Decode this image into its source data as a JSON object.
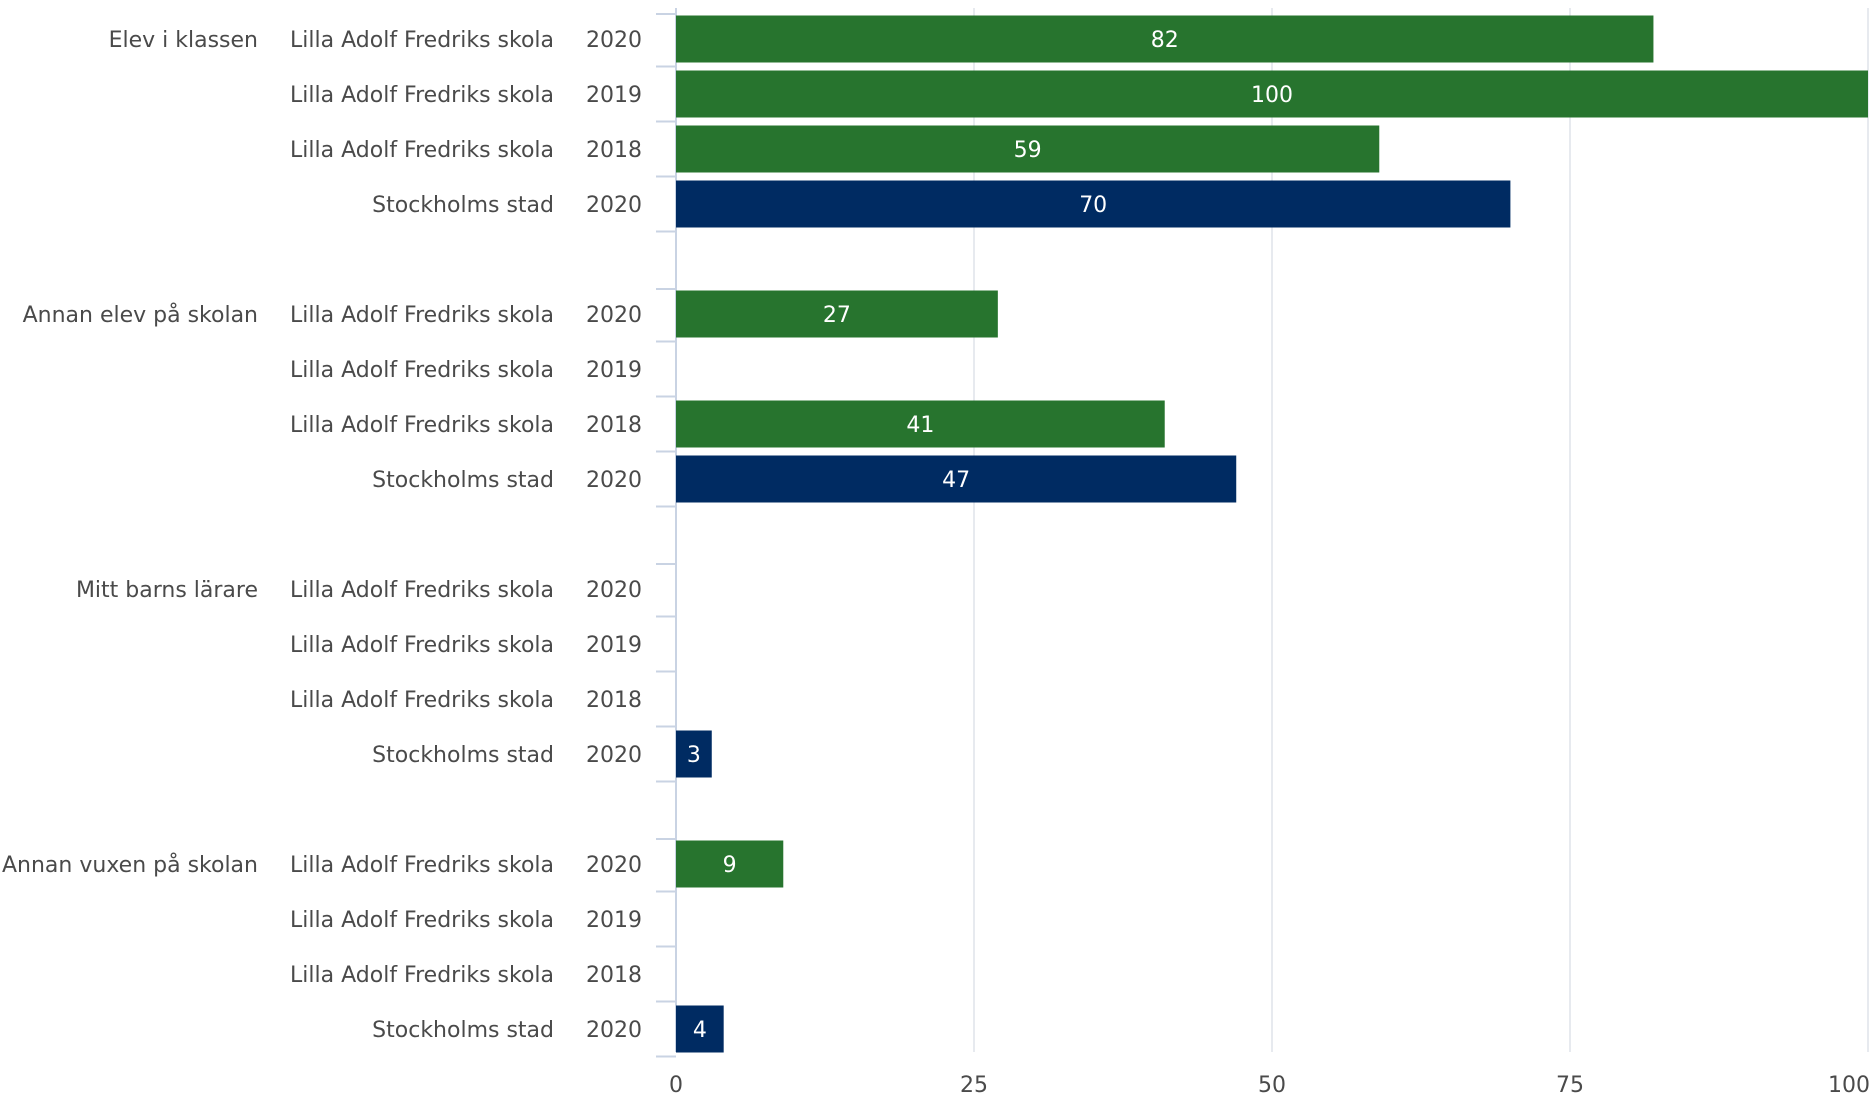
{
  "chart_data": {
    "type": "bar",
    "orientation": "horizontal",
    "xlim": [
      0,
      100
    ],
    "x_ticks": [
      0,
      25,
      50,
      75,
      100
    ],
    "grid": true,
    "colors": {
      "school": "#27742e",
      "city": "#002b62"
    },
    "groups": [
      {
        "category": "Elev i klassen",
        "rows": [
          {
            "org": "Lilla Adolf Fredriks skola",
            "year": "2020",
            "value": 82,
            "kind": "school"
          },
          {
            "org": "Lilla Adolf Fredriks skola",
            "year": "2019",
            "value": 100,
            "kind": "school"
          },
          {
            "org": "Lilla Adolf Fredriks skola",
            "year": "2018",
            "value": 59,
            "kind": "school"
          },
          {
            "org": "Stockholms stad",
            "year": "2020",
            "value": 70,
            "kind": "city"
          }
        ]
      },
      {
        "category": "Annan elev på skolan",
        "rows": [
          {
            "org": "Lilla Adolf Fredriks skola",
            "year": "2020",
            "value": 27,
            "kind": "school"
          },
          {
            "org": "Lilla Adolf Fredriks skola",
            "year": "2019",
            "value": null,
            "kind": "school"
          },
          {
            "org": "Lilla Adolf Fredriks skola",
            "year": "2018",
            "value": 41,
            "kind": "school"
          },
          {
            "org": "Stockholms stad",
            "year": "2020",
            "value": 47,
            "kind": "city"
          }
        ]
      },
      {
        "category": "Mitt barns lärare",
        "rows": [
          {
            "org": "Lilla Adolf Fredriks skola",
            "year": "2020",
            "value": null,
            "kind": "school"
          },
          {
            "org": "Lilla Adolf Fredriks skola",
            "year": "2019",
            "value": null,
            "kind": "school"
          },
          {
            "org": "Lilla Adolf Fredriks skola",
            "year": "2018",
            "value": null,
            "kind": "school"
          },
          {
            "org": "Stockholms stad",
            "year": "2020",
            "value": 3,
            "kind": "city"
          }
        ]
      },
      {
        "category": "Annan vuxen på skolan",
        "rows": [
          {
            "org": "Lilla Adolf Fredriks skola",
            "year": "2020",
            "value": 9,
            "kind": "school"
          },
          {
            "org": "Lilla Adolf Fredriks skola",
            "year": "2019",
            "value": null,
            "kind": "school"
          },
          {
            "org": "Lilla Adolf Fredriks skola",
            "year": "2018",
            "value": null,
            "kind": "school"
          },
          {
            "org": "Stockholms stad",
            "year": "2020",
            "value": 4,
            "kind": "city"
          }
        ]
      }
    ]
  }
}
